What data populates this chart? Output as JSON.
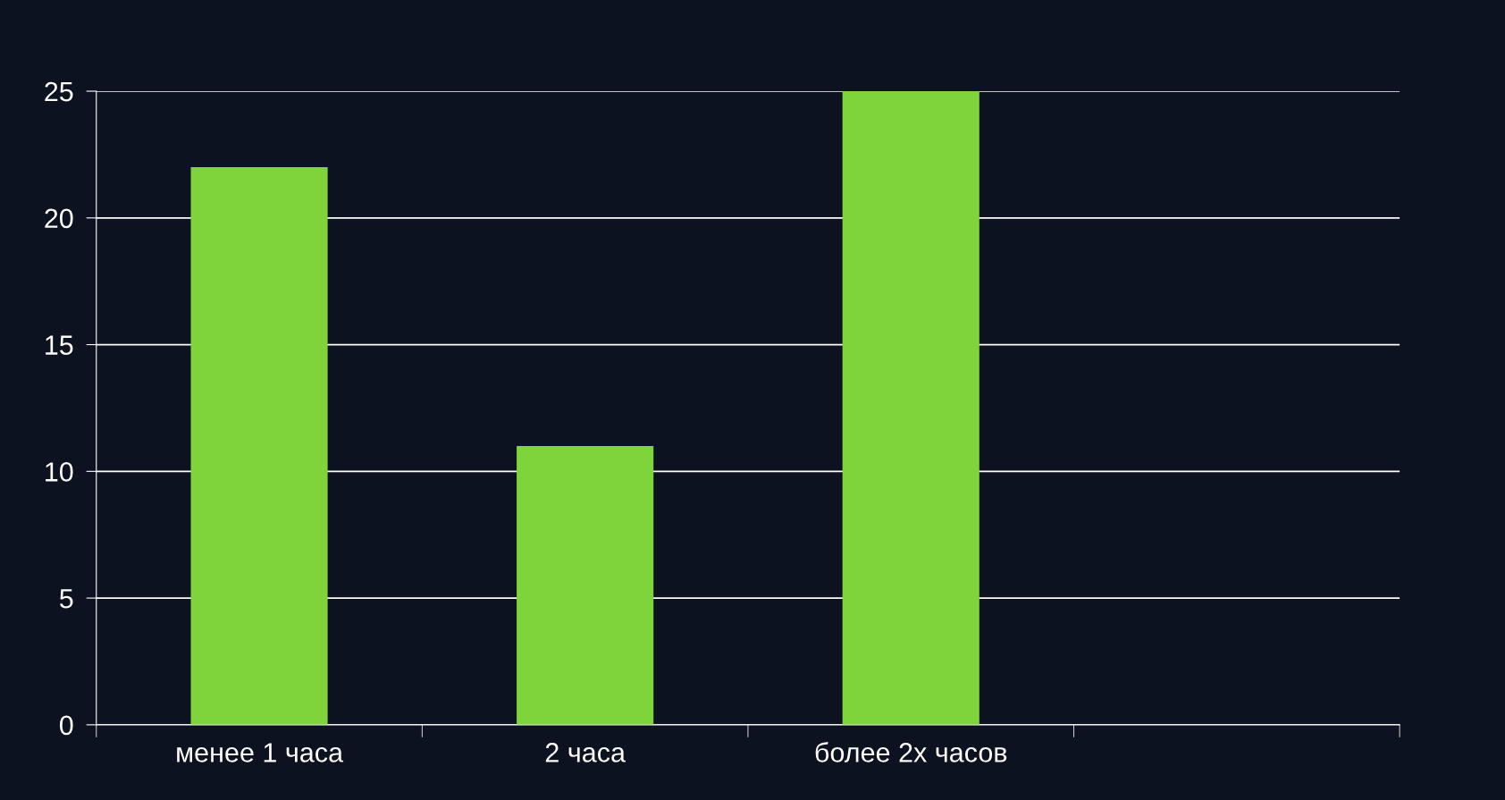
{
  "chart_data": {
    "type": "bar",
    "categories": [
      "менее 1 часа",
      "2 часа",
      "более 2х часов",
      null
    ],
    "values": [
      22,
      11,
      25,
      null
    ],
    "color": "#7ed43a",
    "ylim": [
      0,
      25
    ],
    "yticks": [
      0,
      5,
      10,
      15,
      20,
      25
    ],
    "grid": "y",
    "legend": false
  }
}
